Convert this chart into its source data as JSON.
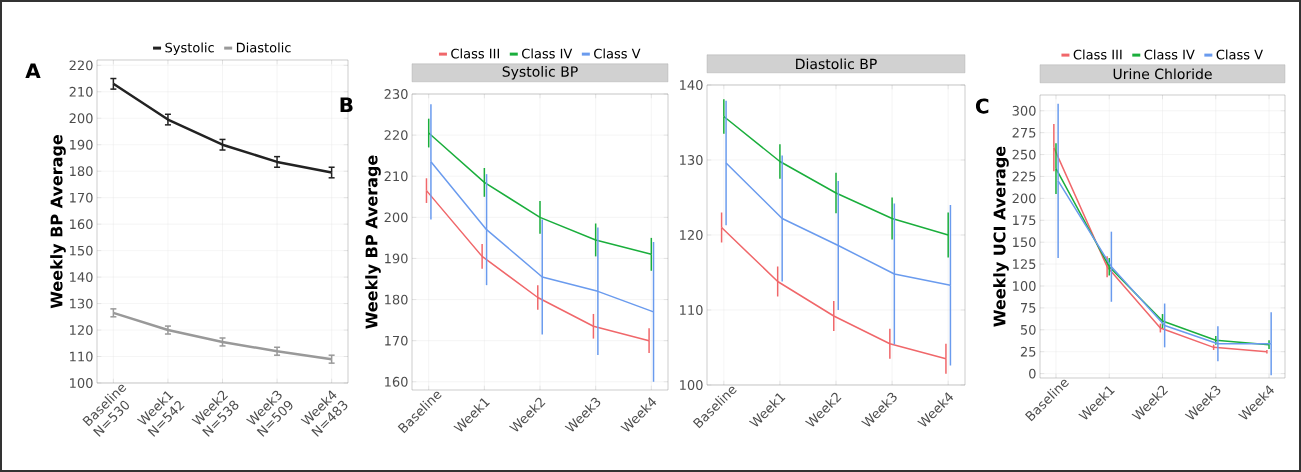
{
  "chart_data": [
    {
      "type": "line",
      "annotations": [
        "A"
      ],
      "ylabel": "Weekly BP Average",
      "categories": [
        "Baseline N=530",
        "Week1 N=542",
        "Week2 N=538",
        "Week3 N=509",
        "Week4 N=483"
      ],
      "ylim": [
        100,
        222
      ],
      "yticks": [
        100,
        110,
        120,
        130,
        140,
        150,
        160,
        170,
        180,
        190,
        200,
        210,
        220
      ],
      "grid": true,
      "legend": "top",
      "series": [
        {
          "name": "Systolic",
          "color": "#222222",
          "values": [
            213,
            199.5,
            190,
            183.5,
            179.5
          ],
          "errors": [
            2,
            2,
            2,
            2,
            2
          ]
        },
        {
          "name": "Diastolic",
          "color": "#999999",
          "values": [
            126.5,
            120,
            115.5,
            112,
            109
          ],
          "errors": [
            1.5,
            1.5,
            1.5,
            1.5,
            1.5
          ]
        }
      ]
    },
    {
      "type": "line",
      "annotations": [
        "B"
      ],
      "title": "Systolic BP",
      "ylabel": "Weekly BP Average",
      "categories": [
        "Baseline",
        "Week1",
        "Week2",
        "Week3",
        "Week4"
      ],
      "ylim": [
        158,
        230
      ],
      "yticks": [
        160,
        170,
        180,
        190,
        200,
        210,
        220,
        230
      ],
      "grid": true,
      "legend": "top",
      "series": [
        {
          "name": "Class III",
          "color": "#f0676a",
          "values": [
            206.5,
            190.5,
            180.5,
            173.5,
            170
          ],
          "errors": [
            3,
            3,
            3,
            3,
            3
          ]
        },
        {
          "name": "Class IV",
          "color": "#1aae3c",
          "values": [
            220.5,
            208.5,
            200,
            194.5,
            191
          ],
          "errors": [
            3.5,
            3.5,
            4,
            4,
            4
          ]
        },
        {
          "name": "Class V",
          "color": "#6a9bee",
          "values": [
            213.5,
            197,
            185.5,
            182,
            177
          ],
          "errors": [
            14,
            13.5,
            14,
            15.5,
            17
          ]
        }
      ]
    },
    {
      "type": "line",
      "title": "Diastolic BP",
      "categories": [
        "Baseline",
        "Week1",
        "Week2",
        "Week3",
        "Week4"
      ],
      "ylim": [
        100,
        140
      ],
      "yticks": [
        100,
        110,
        120,
        130,
        140
      ],
      "grid": true,
      "series": [
        {
          "color": "#f0676a",
          "values": [
            121,
            113.8,
            109.2,
            105.5,
            103.5
          ],
          "errors": [
            2,
            2,
            2,
            2,
            2
          ]
        },
        {
          "color": "#1aae3c",
          "values": [
            135.8,
            129.8,
            125.6,
            122.2,
            120
          ],
          "errors": [
            2.3,
            2.3,
            2.7,
            2.8,
            3
          ]
        },
        {
          "color": "#6a9bee",
          "values": [
            129.6,
            122.2,
            118.6,
            114.8,
            113.3
          ],
          "errors": [
            8.3,
            8.4,
            8.6,
            9.4,
            10.7
          ]
        }
      ]
    },
    {
      "type": "line",
      "annotations": [
        "C"
      ],
      "title": "Urine Chloride",
      "ylabel": "Weekly UCI Average",
      "categories": [
        "Baseline",
        "Week1",
        "Week2",
        "Week3",
        "Week4"
      ],
      "ylim": [
        -5,
        318
      ],
      "yticks": [
        0,
        25,
        50,
        75,
        100,
        125,
        150,
        175,
        200,
        225,
        250,
        275,
        300
      ],
      "grid": true,
      "legend": "top",
      "series": [
        {
          "name": "Class III",
          "color": "#f0676a",
          "values": [
            258,
            122,
            52,
            30,
            25
          ],
          "errors": [
            27,
            12,
            5,
            3,
            2
          ]
        },
        {
          "name": "Class IV",
          "color": "#1aae3c",
          "values": [
            234,
            122,
            60,
            38,
            33
          ],
          "errors": [
            29,
            10,
            8,
            5,
            5
          ]
        },
        {
          "name": "Class V",
          "color": "#6a9bee",
          "values": [
            220,
            122,
            55,
            34,
            34
          ],
          "errors": [
            88,
            40,
            25,
            20,
            36
          ]
        }
      ]
    }
  ]
}
